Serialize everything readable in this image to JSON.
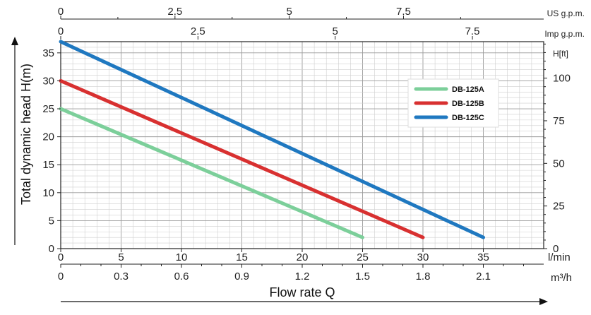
{
  "chart_data": {
    "type": "line",
    "xlabel": "Flow rate Q",
    "ylabel": "Total dynamic head H(m)",
    "x_unit": "l/min",
    "xlim": [
      0,
      40
    ],
    "ylim": [
      0,
      37
    ],
    "x_ticks": [
      "0",
      "5",
      "10",
      "15",
      "20",
      "25",
      "30",
      "35"
    ],
    "y_ticks": [
      "0",
      "5",
      "10",
      "15",
      "20",
      "25",
      "30",
      "35"
    ],
    "secondary_axes": {
      "us_gpm": {
        "unit": "US g.p.m.",
        "ticks": [
          "0",
          "2.5",
          "5",
          "7.5"
        ]
      },
      "imp_gpm": {
        "unit": "Imp g.p.m.",
        "ticks": [
          "0",
          "2.5",
          "5",
          "7.5"
        ]
      },
      "m3h": {
        "unit": "m³/h",
        "ticks": [
          "0",
          "0.3",
          "0.6",
          "0.9",
          "1.2",
          "1.5",
          "1.8",
          "2.1"
        ]
      },
      "ft": {
        "unit": "H[ft]",
        "ticks": [
          "0",
          "25",
          "50",
          "75",
          "100"
        ]
      }
    },
    "grid": true,
    "legend_position": "top-right",
    "series": [
      {
        "name": "DB-125A",
        "color": "#7ccf9a",
        "x": [
          0,
          25
        ],
        "y": [
          25,
          2
        ]
      },
      {
        "name": "DB-125B",
        "color": "#d83030",
        "x": [
          0,
          30
        ],
        "y": [
          30,
          2
        ]
      },
      {
        "name": "DB-125C",
        "color": "#1f78c0",
        "x": [
          0,
          35
        ],
        "y": [
          37,
          2
        ]
      }
    ]
  }
}
